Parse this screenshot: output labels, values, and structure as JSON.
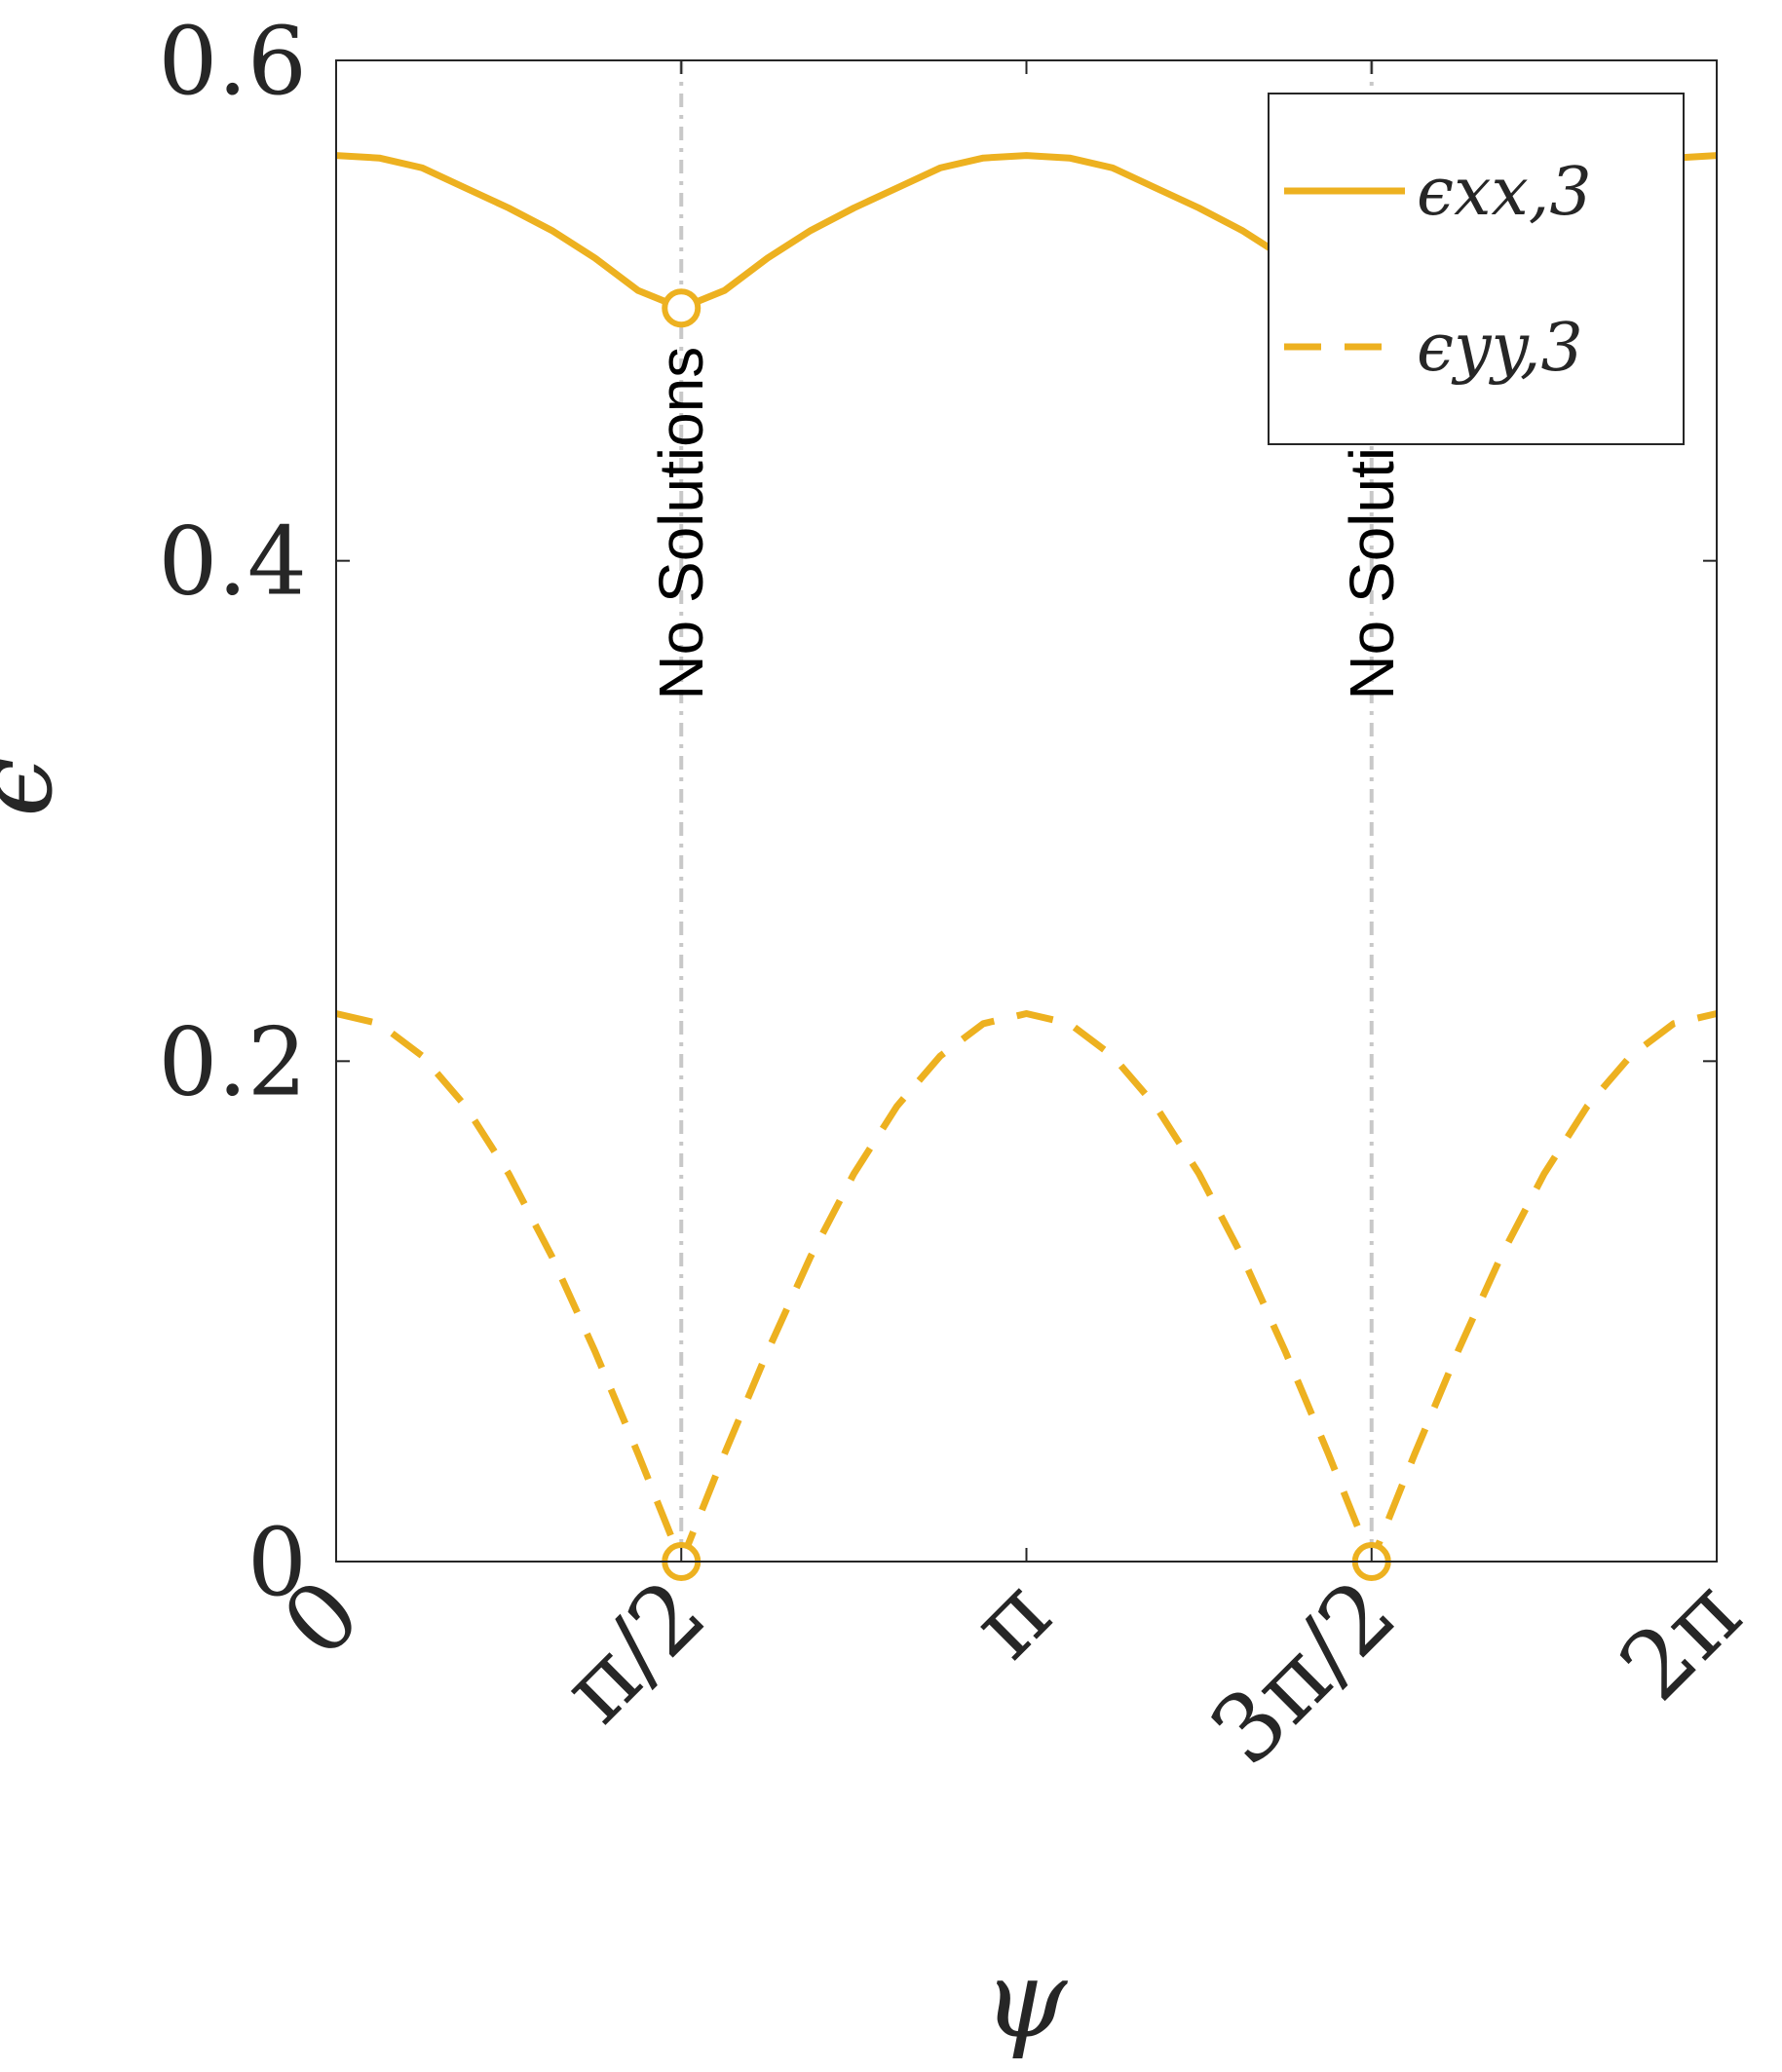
{
  "chart_data": {
    "type": "line",
    "title": "",
    "xlabel": "ψ",
    "ylabel": "ϵ",
    "xlim": [
      0,
      6.283185
    ],
    "ylim": [
      0,
      0.6
    ],
    "grid": false,
    "legend_position": "top-right",
    "x_ticks": [
      {
        "value": 0,
        "label": "0"
      },
      {
        "value": 1.570796,
        "label": "π/2"
      },
      {
        "value": 3.141593,
        "label": "π"
      },
      {
        "value": 4.712389,
        "label": "3π/2"
      },
      {
        "value": 6.283185,
        "label": "2π"
      }
    ],
    "y_ticks": [
      {
        "value": 0,
        "label": "0"
      },
      {
        "value": 0.2,
        "label": "0.2"
      },
      {
        "value": 0.4,
        "label": "0.4"
      },
      {
        "value": 0.6,
        "label": "0.6"
      }
    ],
    "color": "#EDB120",
    "series": [
      {
        "name": "ϵxx,3",
        "style": "solid",
        "x": [
          0,
          0.19635,
          0.3927,
          0.589,
          0.7854,
          0.9817,
          1.1781,
          1.3744,
          1.5708,
          1.7671,
          1.9635,
          2.1598,
          2.3562,
          2.5525,
          2.7489,
          2.9452,
          3.1416,
          3.3379,
          3.5343,
          3.7306,
          3.927,
          4.1233,
          4.3197,
          4.516,
          4.7124,
          4.9087,
          5.1051,
          5.3014,
          5.4978,
          5.6941,
          5.8905,
          6.0868,
          6.2832
        ],
        "y": [
          0.562,
          0.561,
          0.557,
          0.549,
          0.541,
          0.532,
          0.521,
          0.508,
          0.501,
          0.508,
          0.521,
          0.532,
          0.541,
          0.549,
          0.557,
          0.561,
          0.562,
          0.561,
          0.557,
          0.549,
          0.541,
          0.532,
          0.521,
          0.508,
          0.501,
          0.508,
          0.521,
          0.532,
          0.541,
          0.549,
          0.557,
          0.561,
          0.562
        ]
      },
      {
        "name": "ϵyy,3",
        "style": "dashed",
        "x": [
          0,
          0.19635,
          0.3927,
          0.589,
          0.7854,
          0.9817,
          1.1781,
          1.3744,
          1.5708,
          1.7671,
          1.9635,
          2.1598,
          2.3562,
          2.5525,
          2.7489,
          2.9452,
          3.1416,
          3.3379,
          3.5343,
          3.7306,
          3.927,
          4.1233,
          4.3197,
          4.516,
          4.7124,
          4.9087,
          5.1051,
          5.3014,
          5.4978,
          5.6941,
          5.8905,
          6.0868,
          6.2832
        ],
        "y": [
          0.219,
          0.215,
          0.202,
          0.182,
          0.155,
          0.122,
          0.084,
          0.043,
          0.0,
          0.043,
          0.084,
          0.122,
          0.155,
          0.182,
          0.202,
          0.215,
          0.219,
          0.215,
          0.202,
          0.182,
          0.155,
          0.122,
          0.084,
          0.043,
          0.0,
          0.043,
          0.084,
          0.122,
          0.155,
          0.182,
          0.202,
          0.215,
          0.219
        ]
      }
    ],
    "open_markers": [
      {
        "x": 1.570796,
        "y": 0.501
      },
      {
        "x": 4.712389,
        "y": 0.501
      },
      {
        "x": 1.570796,
        "y": 0.0
      },
      {
        "x": 4.712389,
        "y": 0.0
      }
    ],
    "vertical_lines": [
      {
        "x": 1.570796,
        "label": "No Solutions"
      },
      {
        "x": 4.712389,
        "label": "No Solutions"
      }
    ]
  }
}
